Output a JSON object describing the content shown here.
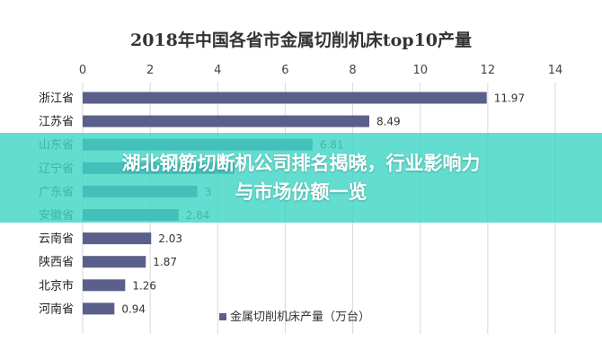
{
  "banner": {
    "line1": "湖北钢筋切断机公司排名揭晓，行业影响力",
    "line2": "与市场份额一览"
  },
  "chart_data": {
    "type": "bar",
    "orientation": "horizontal",
    "title": "2018年中国各省市金属切削机床top10产量",
    "categories": [
      "浙江省",
      "江苏省",
      "山东省",
      "辽宁省",
      "广东省",
      "安徽省",
      "云南省",
      "陕西省",
      "北京市",
      "河南省"
    ],
    "series": [
      {
        "name": "金属切削机床产量（万台）",
        "values": [
          11.97,
          8.49,
          6.81,
          4.5,
          3.4,
          2.84,
          2.03,
          1.87,
          1.26,
          0.94
        ]
      }
    ],
    "value_labels": [
      "11.97",
      "8.49",
      "6.81",
      "",
      "3",
      "2.84",
      "2.03",
      "1.87",
      "1.26",
      "0.94"
    ],
    "xlim": [
      0,
      14
    ],
    "xticks": [
      "0",
      "2",
      "4",
      "6",
      "8",
      "10",
      "12",
      "14"
    ],
    "grid": true,
    "legend_position": "bottom",
    "bar_color": "#5b5f8c"
  }
}
